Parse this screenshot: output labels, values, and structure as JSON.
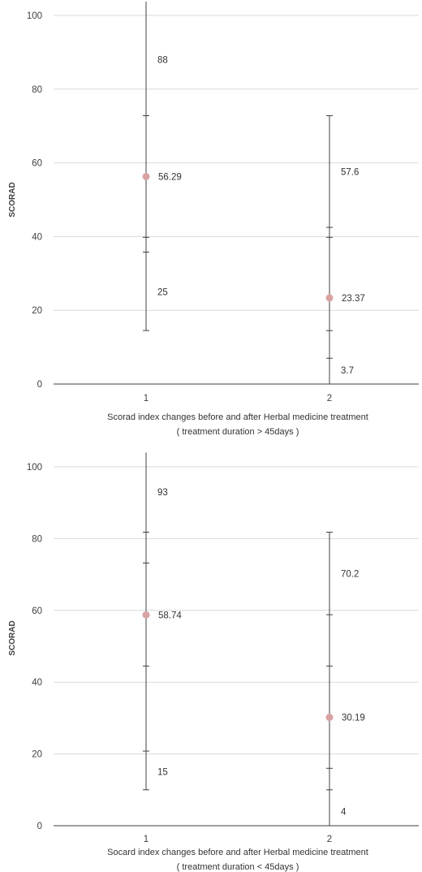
{
  "chart_data": [
    {
      "type": "scatter",
      "ylabel": "SCORAD",
      "ylim": [
        0,
        100
      ],
      "yticks": [
        0,
        20,
        40,
        60,
        80,
        100
      ],
      "categories": [
        "1",
        "2"
      ],
      "caption_lines": [
        "Scorad index changes before and after Herbal medicine treatment",
        "( treatment duration  > 45days )"
      ],
      "grid": true,
      "point_color": "#d9a3a3",
      "groups": [
        {
          "category": "1",
          "mean": 56.29,
          "max": 88,
          "min": 25,
          "mean_label": "56.29",
          "max_label": "88",
          "min_label": "25",
          "whisker_top": 104,
          "whisker_bottom": 14.5,
          "caps": [
            72.8,
            39.8,
            35.8,
            14.5
          ]
        },
        {
          "category": "2",
          "mean": 23.37,
          "max": 57.6,
          "min": 3.7,
          "mean_label": "23.37",
          "max_label": "57.6",
          "min_label": "3.7",
          "whisker_top": 72.8,
          "whisker_bottom": 0,
          "caps": [
            72.8,
            42.5,
            39.8,
            14.5,
            7
          ]
        }
      ]
    },
    {
      "type": "scatter",
      "ylabel": "SCORAD",
      "ylim": [
        0,
        100
      ],
      "yticks": [
        0,
        20,
        40,
        60,
        80,
        100
      ],
      "categories": [
        "1",
        "2"
      ],
      "caption_lines": [
        "Socard index  changes before and after Herbal medicine treatment",
        "( treatment duration  < 45days )"
      ],
      "grid": true,
      "point_color": "#d9a3a3",
      "groups": [
        {
          "category": "1",
          "mean": 58.74,
          "max": 93,
          "min": 15,
          "mean_label": "58.74",
          "max_label": "93",
          "min_label": "15",
          "whisker_top": 104,
          "whisker_bottom": 10,
          "caps": [
            81.8,
            73.2,
            44.5,
            20.8,
            10
          ]
        },
        {
          "category": "2",
          "mean": 30.19,
          "max": 70.2,
          "min": 4,
          "mean_label": "30.19",
          "max_label": "70.2",
          "min_label": "4",
          "whisker_top": 81.8,
          "whisker_bottom": 0,
          "caps": [
            81.8,
            58.8,
            44.5,
            16,
            10
          ]
        }
      ]
    }
  ]
}
